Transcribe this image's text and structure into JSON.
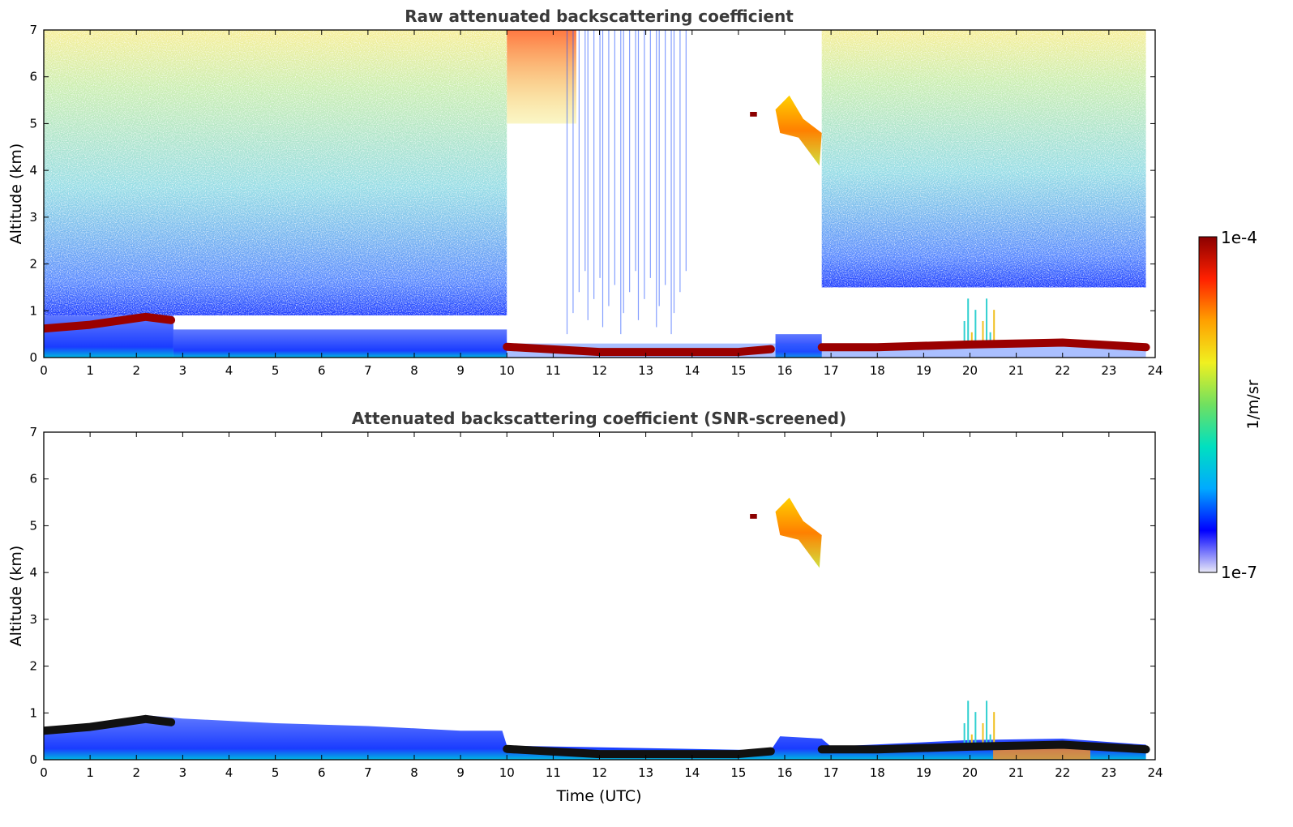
{
  "chart_data": [
    {
      "type": "heatmap",
      "title": "Raw attenuated backscattering coefficient",
      "xlabel": "",
      "ylabel": "Altitude (km)",
      "xlim": [
        0,
        24
      ],
      "ylim": [
        0,
        7
      ],
      "xticks": [
        "0",
        "1",
        "2",
        "3",
        "4",
        "5",
        "6",
        "7",
        "8",
        "9",
        "10",
        "11",
        "12",
        "13",
        "14",
        "15",
        "16",
        "17",
        "18",
        "19",
        "20",
        "21",
        "22",
        "23",
        "24"
      ],
      "yticks": [
        "0",
        "1",
        "2",
        "3",
        "4",
        "5",
        "6",
        "7"
      ],
      "layers": [
        {
          "x": [
            0,
            2.8
          ],
          "y": [
            0,
            0.9
          ],
          "level": "weak-blue"
        },
        {
          "x": [
            2.8,
            10
          ],
          "y": [
            0,
            0.6
          ],
          "level": "weak-blue"
        },
        {
          "x": [
            0,
            10
          ],
          "y": [
            0.9,
            7
          ],
          "level": "noise"
        },
        {
          "x": [
            10,
            11.5
          ],
          "y": [
            5,
            7
          ],
          "level": "noise-strong"
        },
        {
          "x": [
            15.8,
            16.8
          ],
          "y": [
            0,
            0.5
          ],
          "level": "weak-blue"
        },
        {
          "x": [
            16.8,
            23.8
          ],
          "y": [
            1.5,
            7
          ],
          "level": "noise"
        }
      ],
      "boundary_layer_top": [
        {
          "x": 0,
          "y": 0.62
        },
        {
          "x": 1,
          "y": 0.7
        },
        {
          "x": 2.2,
          "y": 0.87
        },
        {
          "x": 2.75,
          "y": 0.8
        },
        {
          "x": 10,
          "y": 0.23
        },
        {
          "x": 12,
          "y": 0.12
        },
        {
          "x": 15,
          "y": 0.12
        },
        {
          "x": 15.7,
          "y": 0.18
        },
        {
          "x": 16.8,
          "y": 0.22
        },
        {
          "x": 18,
          "y": 0.22
        },
        {
          "x": 20,
          "y": 0.28
        },
        {
          "x": 22,
          "y": 0.32
        },
        {
          "x": 23.8,
          "y": 0.22
        }
      ],
      "clouds": [
        {
          "x": [
            15.8,
            16.8
          ],
          "y": [
            4.1,
            5.6
          ],
          "level": "strong"
        },
        {
          "x": [
            19.8,
            20.6
          ],
          "y": [
            0.3,
            1.5
          ],
          "level": "medium"
        }
      ]
    },
    {
      "type": "heatmap",
      "title": "Attenuated backscattering coefficient (SNR-screened)",
      "xlabel": "Time (UTC)",
      "ylabel": "Altitude (km)",
      "xlim": [
        0,
        24
      ],
      "ylim": [
        0,
        7
      ],
      "xticks": [
        "0",
        "1",
        "2",
        "3",
        "4",
        "5",
        "6",
        "7",
        "8",
        "9",
        "10",
        "11",
        "12",
        "13",
        "14",
        "15",
        "16",
        "17",
        "18",
        "19",
        "20",
        "21",
        "22",
        "23",
        "24"
      ],
      "yticks": [
        "0",
        "1",
        "2",
        "3",
        "4",
        "5",
        "6",
        "7"
      ],
      "boundary_layer_top": [
        {
          "x": 0,
          "y": 0.62
        },
        {
          "x": 1,
          "y": 0.7
        },
        {
          "x": 2.2,
          "y": 0.87
        },
        {
          "x": 2.75,
          "y": 0.8
        },
        {
          "x": 10,
          "y": 0.23
        },
        {
          "x": 12,
          "y": 0.12
        },
        {
          "x": 15,
          "y": 0.12
        },
        {
          "x": 15.7,
          "y": 0.18
        },
        {
          "x": 16.8,
          "y": 0.22
        },
        {
          "x": 18,
          "y": 0.22
        },
        {
          "x": 20,
          "y": 0.28
        },
        {
          "x": 22,
          "y": 0.32
        },
        {
          "x": 23.8,
          "y": 0.22
        }
      ],
      "clouds": [
        {
          "x": [
            15.8,
            16.8
          ],
          "y": [
            4.1,
            5.6
          ],
          "level": "strong"
        },
        {
          "x": [
            19.8,
            20.6
          ],
          "y": [
            0.3,
            1.5
          ],
          "level": "medium"
        }
      ]
    }
  ],
  "colorbar": {
    "label": "1/m/sr",
    "max_label": "1e-4",
    "min_label": "1e-7",
    "scale": "log",
    "colormap": [
      "#e8e8f8",
      "#0000ff",
      "#00aaff",
      "#00e0c0",
      "#70e060",
      "#f0f020",
      "#ffa000",
      "#ff2000",
      "#8b0000"
    ]
  },
  "colors": {
    "boundary_layer": "#9a0000",
    "boundary_layer_screened": "#111111",
    "aerosol_weak": "#1a3cff",
    "aerosol_surface": "#00b8e0"
  }
}
